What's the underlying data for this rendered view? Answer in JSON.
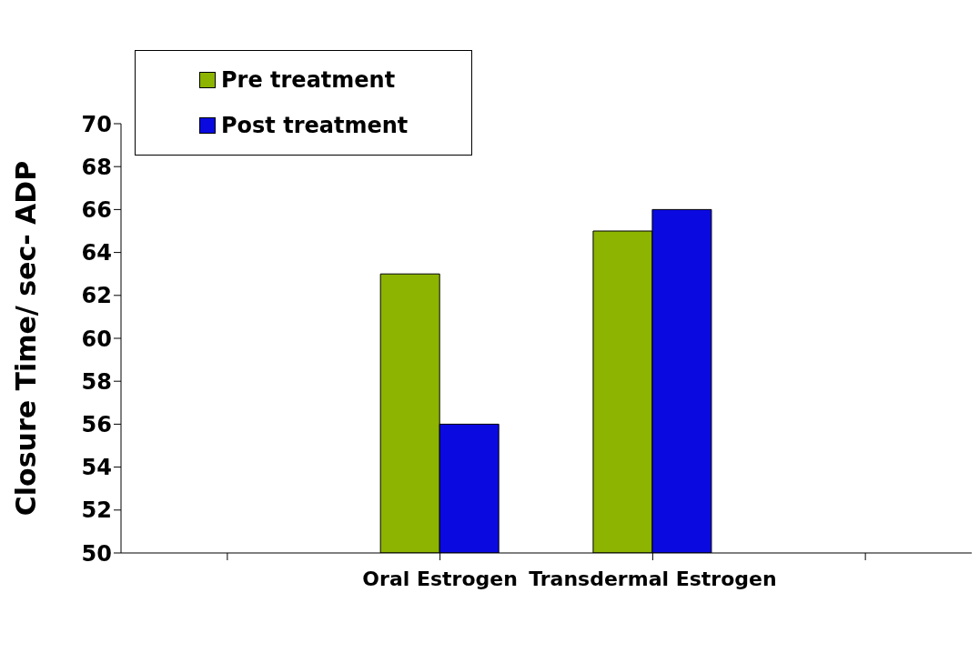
{
  "chart_data": {
    "type": "bar",
    "ylabel": "Closure Time/ sec- ADP",
    "categories": [
      null,
      "Oral Estrogen",
      "Transdermal Estrogen",
      null
    ],
    "series": [
      {
        "name": "Pre treatment",
        "color": "#8cb400",
        "values": [
          null,
          63,
          65,
          null
        ]
      },
      {
        "name": "Post treatment",
        "color": "#0a0ae0",
        "values": [
          null,
          56,
          66,
          null
        ]
      }
    ],
    "ylim": [
      50,
      70
    ],
    "yticks": [
      50,
      52,
      54,
      56,
      58,
      60,
      62,
      64,
      66,
      68,
      70
    ],
    "grid": false,
    "legend": "top left"
  }
}
